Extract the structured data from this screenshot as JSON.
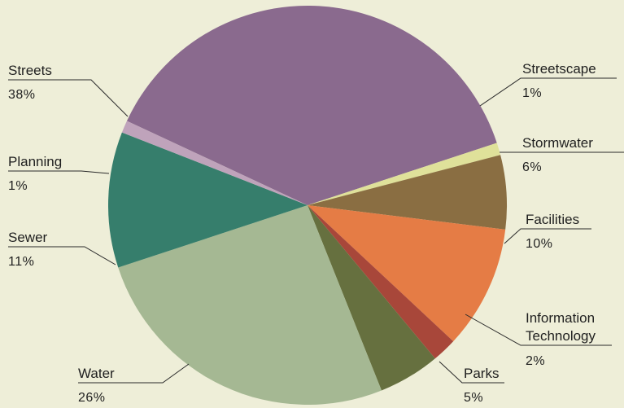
{
  "chart_data": {
    "type": "pie",
    "title": "",
    "start_angle_deg": 155,
    "direction": "clockwise",
    "slices": [
      {
        "name": "Streets",
        "value": 38,
        "label": "38%",
        "color": "#8a6a8e"
      },
      {
        "name": "Streetscape",
        "value": 1,
        "label": "1%",
        "color": "#dfe19a"
      },
      {
        "name": "Stormwater",
        "value": 6,
        "label": "6%",
        "color": "#8a6e42"
      },
      {
        "name": "Facilities",
        "value": 10,
        "label": "10%",
        "color": "#e57c45"
      },
      {
        "name": "Information Technology",
        "value": 2,
        "label": "2%",
        "color": "#a8473a"
      },
      {
        "name": "Parks",
        "value": 5,
        "label": "5%",
        "color": "#66703f"
      },
      {
        "name": "Water",
        "value": 26,
        "label": "26%",
        "color": "#a5b893"
      },
      {
        "name": "Sewer",
        "value": 11,
        "label": "11%",
        "color": "#367e6c"
      },
      {
        "name": "Planning",
        "value": 1,
        "label": "1%",
        "color": "#bfa3bb"
      }
    ],
    "legend": "none"
  }
}
